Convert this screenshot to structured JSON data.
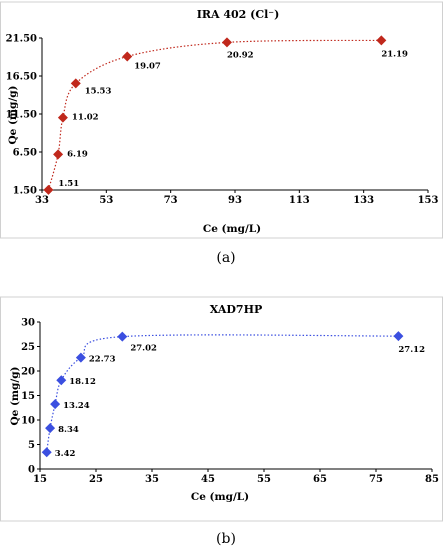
{
  "chart_data": [
    {
      "type": "scatter",
      "title": "IRA 402 (Cl⁻)",
      "xlabel": "Ce (mg/L)",
      "ylabel": "Qe (mg/g)",
      "xlim": [
        33,
        153
      ],
      "ylim": [
        1.5,
        21.5
      ],
      "xticks": [
        33,
        53,
        73,
        93,
        113,
        133,
        153
      ],
      "yticks": [
        "1.50",
        "6.50",
        "11.50",
        "16.50",
        "21.50"
      ],
      "series": [
        {
          "marker_color": "#c0281c",
          "line_color": "#c0281c",
          "x": [
            35,
            38,
            39.5,
            43.5,
            59.5,
            90.5,
            138.5
          ],
          "y": [
            1.51,
            6.19,
            11.02,
            15.53,
            19.07,
            20.92,
            21.19
          ],
          "labels": [
            "1.51",
            "6.19",
            "11.02",
            "15.53",
            "19.07",
            "20.92",
            "21.19"
          ]
        }
      ],
      "caption": "(a)"
    },
    {
      "type": "scatter",
      "title": "XAD7HP",
      "xlabel": "Ce (mg/L)",
      "ylabel": "Qe (mg/g)",
      "xlim": [
        15,
        85
      ],
      "ylim": [
        0,
        30
      ],
      "xticks": [
        15,
        25,
        35,
        45,
        55,
        65,
        75,
        85
      ],
      "yticks": [
        0,
        5,
        10,
        15,
        20,
        25,
        30
      ],
      "series": [
        {
          "marker_color": "#3b4fe0",
          "line_color": "#3b4fe0",
          "x": [
            16.2,
            16.8,
            17.7,
            18.8,
            22.3,
            29.7,
            79
          ],
          "y": [
            3.42,
            8.34,
            13.24,
            18.12,
            22.73,
            27.02,
            27.12
          ],
          "labels": [
            "3.42",
            "8.34",
            "13.24",
            "18.12",
            "22.73",
            "27.02",
            "27.12"
          ]
        }
      ],
      "caption": "(b)"
    }
  ]
}
